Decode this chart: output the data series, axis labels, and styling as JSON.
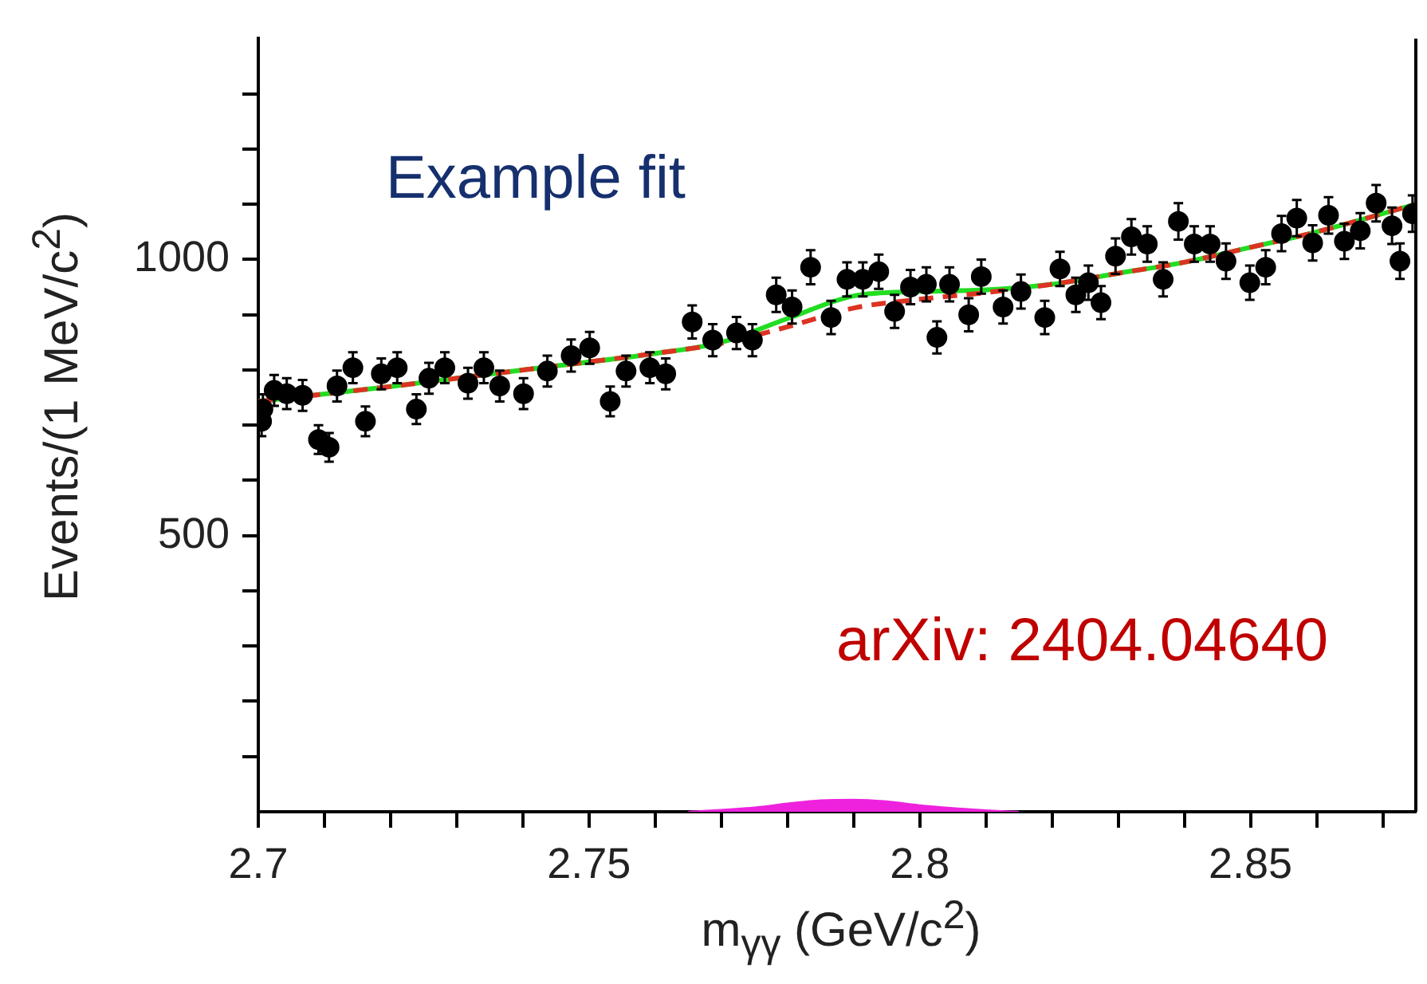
{
  "chart_data": {
    "type": "scatter",
    "title": "Example fit",
    "xlabel": "m$_{γγ}$ (GeV/c$^{2}$)",
    "ylabel": "Events/(1 MeV/c$^{2}$)",
    "annotations": [
      "arXiv: 2404.04640"
    ],
    "xlim": [
      2.7,
      2.875
    ],
    "ylim": [
      0,
      1400
    ],
    "xticks": [
      2.7,
      {
        "value": 2.71,
        "label": null
      },
      {
        "value": 2.72,
        "label": null
      },
      {
        "value": 2.73,
        "label": null
      },
      {
        "value": 2.74,
        "label": null
      },
      2.75,
      {
        "value": 2.76,
        "label": null
      },
      {
        "value": 2.77,
        "label": null
      },
      {
        "value": 2.78,
        "label": null
      },
      {
        "value": 2.79,
        "label": null
      },
      2.8,
      {
        "value": 2.81,
        "label": null
      },
      {
        "value": 2.82,
        "label": null
      },
      {
        "value": 2.83,
        "label": null
      },
      {
        "value": 2.84,
        "label": null
      },
      2.85,
      {
        "value": 2.86,
        "label": null
      },
      {
        "value": 2.87,
        "label": null
      }
    ],
    "yticks": [
      {
        "value": 100,
        "label": null
      },
      {
        "value": 200,
        "label": null
      },
      {
        "value": 300,
        "label": null
      },
      {
        "value": 400,
        "label": null
      },
      500,
      {
        "value": 600,
        "label": null
      },
      {
        "value": 700,
        "label": null
      },
      {
        "value": 800,
        "label": null
      },
      {
        "value": 900,
        "label": null
      },
      1000,
      {
        "value": 1100,
        "label": null
      },
      {
        "value": 1200,
        "label": null
      },
      {
        "value": 1300,
        "label": null
      }
    ],
    "grid": false,
    "legend": false,
    "series": [
      {
        "type": "area",
        "color": "#ee22dd",
        "marker": "none",
        "x": [
          2.765,
          2.775,
          2.78,
          2.785,
          2.79,
          2.795,
          2.8,
          2.805,
          2.81,
          2.815
        ],
        "values": [
          0,
          8,
          15,
          21,
          22,
          19,
          12,
          7,
          3,
          0
        ]
      },
      {
        "color": "#000000",
        "marker": "circle",
        "x": [
          2.7005,
          2.7007,
          2.7024,
          2.7043,
          2.7067,
          2.7091,
          2.7107,
          2.7119,
          2.7143,
          2.7162,
          2.7186,
          2.721,
          2.7239,
          2.7258,
          2.7282,
          2.7317,
          2.7341,
          2.7365,
          2.7401,
          2.7437,
          2.7473,
          2.7501,
          2.7532,
          2.7556,
          2.7592,
          2.7616,
          2.7656,
          2.7687,
          2.7723,
          2.7747,
          2.7783,
          2.7807,
          2.7835,
          2.7866,
          2.789,
          2.7914,
          2.7938,
          2.7962,
          2.7986,
          2.801,
          2.8026,
          2.8045,
          2.8074,
          2.8093,
          2.8126,
          2.8153,
          2.8189,
          2.8212,
          2.8236,
          2.8255,
          2.8274,
          2.8296,
          2.832,
          2.8344,
          2.8368,
          2.8391,
          2.8415,
          2.8439,
          2.8463,
          2.8499,
          2.8523,
          2.8547,
          2.857,
          2.8594,
          2.8618,
          2.8642,
          2.8666,
          2.869,
          2.8714,
          2.8726,
          2.8745
        ],
        "values": [
          707,
          729,
          763,
          757,
          754,
          674,
          660,
          771,
          804,
          707,
          793,
          804,
          729,
          785,
          804,
          776,
          804,
          771,
          757,
          798,
          826,
          840,
          743,
          798,
          804,
          793,
          887,
          854,
          867,
          854,
          936,
          914,
          986,
          895,
          964,
          964,
          978,
          906,
          950,
          955,
          859,
          955,
          900,
          969,
          914,
          942,
          895,
          983,
          936,
          958,
          922,
          1006,
          1041,
          1028,
          964,
          1069,
          1028,
          1028,
          997,
          958,
          986,
          1047,
          1075,
          1030,
          1080,
          1033,
          1052,
          1102,
          1061,
          997,
          1083
        ],
        "errors": [
          27,
          27,
          28,
          28,
          28,
          26,
          26,
          28,
          28,
          27,
          28,
          28,
          27,
          28,
          28,
          28,
          28,
          28,
          28,
          28,
          29,
          29,
          27,
          28,
          28,
          28,
          30,
          29,
          29,
          29,
          31,
          30,
          31,
          30,
          31,
          31,
          31,
          30,
          31,
          31,
          29,
          31,
          30,
          31,
          30,
          31,
          30,
          31,
          31,
          31,
          30,
          32,
          32,
          32,
          31,
          33,
          32,
          32,
          32,
          31,
          31,
          32,
          33,
          32,
          33,
          32,
          32,
          33,
          33,
          32,
          33
        ]
      },
      {
        "type": "line",
        "color": "#dd3322",
        "marker": "none",
        "line_style": "dashed",
        "x": [
          2.7,
          2.72,
          2.74,
          2.76,
          2.77,
          2.78,
          2.79,
          2.8,
          2.81,
          2.82,
          2.83,
          2.84,
          2.85,
          2.86,
          2.875
        ],
        "values": [
          743,
          770,
          800,
          830,
          848,
          878,
          912,
          928,
          940,
          955,
          975,
          995,
          1022,
          1050,
          1100
        ]
      },
      {
        "type": "line",
        "color": "#22dd22",
        "marker": "none",
        "line_style": "solid",
        "x": [
          2.7,
          2.72,
          2.74,
          2.76,
          2.77,
          2.78,
          2.79,
          2.8,
          2.81,
          2.82,
          2.83,
          2.84,
          2.85,
          2.86,
          2.875
        ],
        "values": [
          743,
          770,
          800,
          830,
          850,
          893,
          934,
          942,
          945,
          955,
          975,
          995,
          1022,
          1050,
          1100
        ]
      }
    ]
  }
}
